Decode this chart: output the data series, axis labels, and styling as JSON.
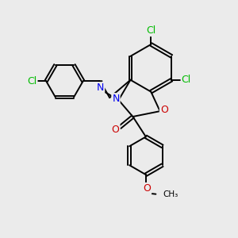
{
  "background_color": "#ebebeb",
  "bond_color": "#000000",
  "bond_lw": 1.4,
  "atom_colors": {
    "Cl": "#00bb00",
    "N": "#0000ee",
    "O": "#cc0000",
    "C": "#000000"
  },
  "fig_w": 3.0,
  "fig_h": 3.0,
  "dpi": 100
}
